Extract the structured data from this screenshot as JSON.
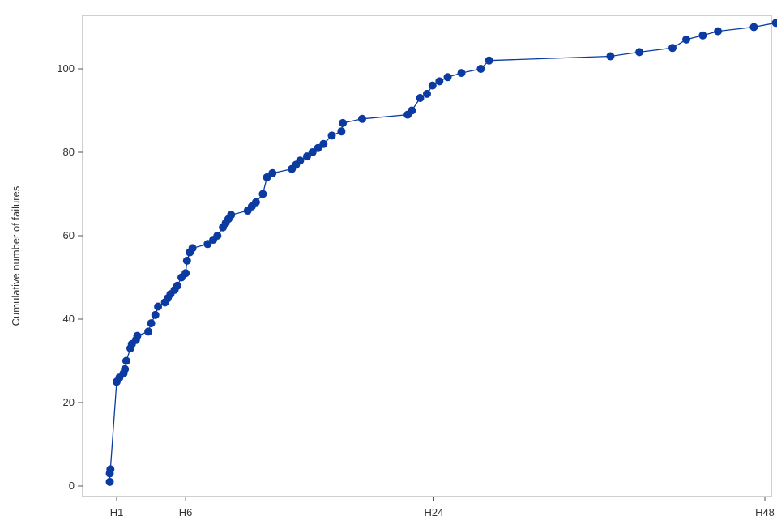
{
  "chart_data": {
    "type": "line",
    "title": "",
    "ylabel": "Cumulative number of failures",
    "xlabel": "",
    "ylim": [
      0,
      112
    ],
    "x_axis": {
      "kind": "hours",
      "range": [
        0.6,
        50
      ],
      "ticks": [
        {
          "value": 1,
          "label": "H1"
        },
        {
          "value": 6,
          "label": "H6"
        },
        {
          "value": 24,
          "label": "H24"
        },
        {
          "value": 48,
          "label": "H48"
        }
      ]
    },
    "y_axis": {
      "ticks": [
        {
          "value": 0,
          "label": "0"
        },
        {
          "value": 20,
          "label": "20"
        },
        {
          "value": 40,
          "label": "40"
        },
        {
          "value": 60,
          "label": "60"
        },
        {
          "value": 80,
          "label": "80"
        },
        {
          "value": 100,
          "label": "100"
        }
      ]
    },
    "grid": false,
    "series": [
      {
        "color": "#0b3aa1",
        "marker": "circle",
        "points": [
          [
            0.5,
            1
          ],
          [
            0.5,
            3
          ],
          [
            0.55,
            4
          ],
          [
            1.0,
            25
          ],
          [
            1.2,
            26
          ],
          [
            1.5,
            27
          ],
          [
            1.6,
            28
          ],
          [
            1.7,
            30
          ],
          [
            2.0,
            33
          ],
          [
            2.1,
            34
          ],
          [
            2.4,
            35
          ],
          [
            2.5,
            36
          ],
          [
            3.3,
            37
          ],
          [
            3.5,
            39
          ],
          [
            3.8,
            41
          ],
          [
            4.0,
            43
          ],
          [
            4.5,
            44
          ],
          [
            4.7,
            45
          ],
          [
            4.9,
            46
          ],
          [
            5.2,
            47
          ],
          [
            5.4,
            48
          ],
          [
            5.7,
            50
          ],
          [
            6.0,
            51
          ],
          [
            6.1,
            54
          ],
          [
            6.3,
            56
          ],
          [
            6.5,
            57
          ],
          [
            7.6,
            58
          ],
          [
            8.0,
            59
          ],
          [
            8.3,
            60
          ],
          [
            8.7,
            62
          ],
          [
            8.9,
            63
          ],
          [
            9.1,
            64
          ],
          [
            9.3,
            65
          ],
          [
            10.5,
            66
          ],
          [
            10.8,
            67
          ],
          [
            11.1,
            68
          ],
          [
            11.6,
            70
          ],
          [
            11.9,
            74
          ],
          [
            12.3,
            75
          ],
          [
            13.7,
            76
          ],
          [
            14.0,
            77
          ],
          [
            14.3,
            78
          ],
          [
            14.8,
            79
          ],
          [
            15.2,
            80
          ],
          [
            15.6,
            81
          ],
          [
            16.0,
            82
          ],
          [
            16.6,
            84
          ],
          [
            17.3,
            85
          ],
          [
            17.4,
            87
          ],
          [
            18.8,
            88
          ],
          [
            22.1,
            89
          ],
          [
            22.4,
            90
          ],
          [
            23.0,
            93
          ],
          [
            23.5,
            94
          ],
          [
            23.9,
            96
          ],
          [
            24.4,
            97
          ],
          [
            25.0,
            98
          ],
          [
            26.0,
            99
          ],
          [
            27.4,
            100
          ],
          [
            28.0,
            102
          ],
          [
            36.8,
            103
          ],
          [
            38.9,
            104
          ],
          [
            41.3,
            105
          ],
          [
            42.3,
            107
          ],
          [
            43.5,
            108
          ],
          [
            44.6,
            109
          ],
          [
            47.2,
            110
          ],
          [
            48.8,
            111
          ]
        ]
      }
    ]
  }
}
